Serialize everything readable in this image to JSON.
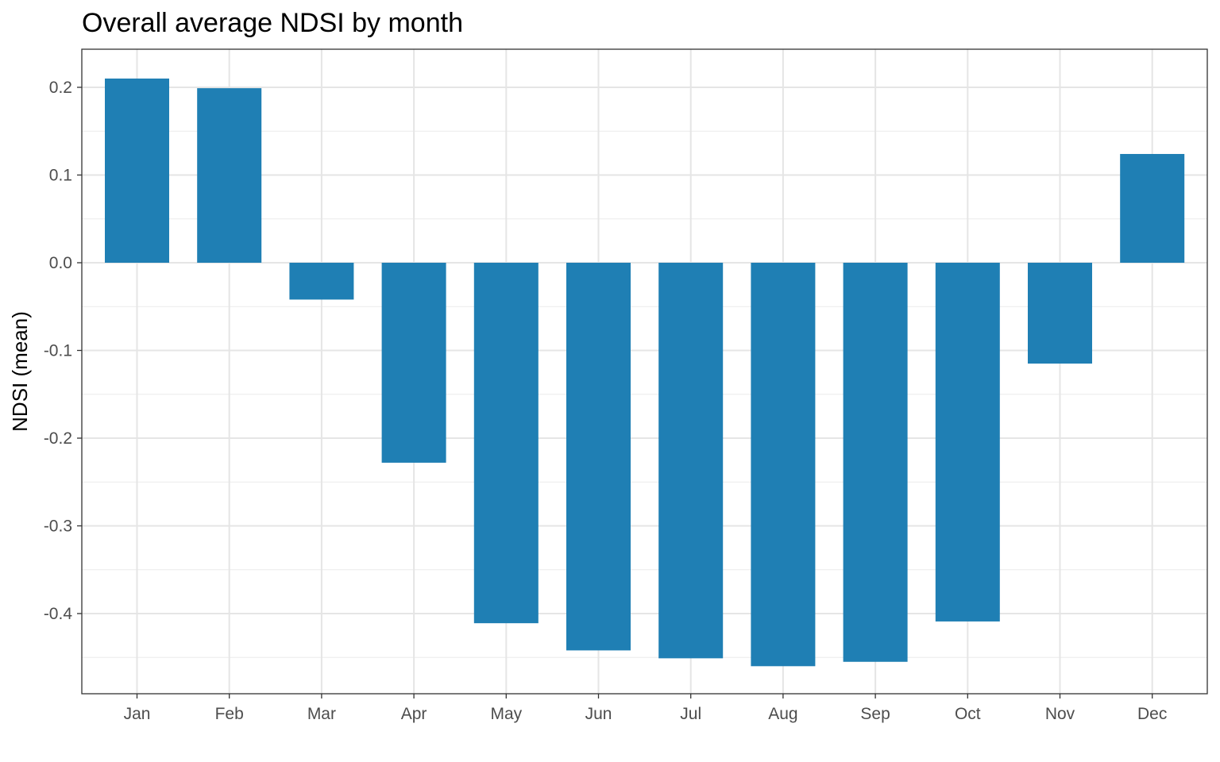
{
  "chart_data": {
    "type": "bar",
    "title": "Overall average NDSI by month",
    "xlabel": "",
    "ylabel": "NDSI (mean)",
    "categories": [
      "Jan",
      "Feb",
      "Mar",
      "Apr",
      "May",
      "Jun",
      "Jul",
      "Aug",
      "Sep",
      "Oct",
      "Nov",
      "Dec"
    ],
    "values": [
      0.21,
      0.199,
      -0.042,
      -0.228,
      -0.411,
      -0.442,
      -0.451,
      -0.46,
      -0.455,
      -0.409,
      -0.115,
      0.124
    ],
    "ylim": [
      -0.49,
      0.24
    ],
    "yticks": [
      0.2,
      0.1,
      0.0,
      -0.1,
      -0.2,
      -0.3,
      -0.4
    ],
    "ytick_labels": [
      "0.2",
      "0.1",
      "0.0",
      "-0.1",
      "-0.2",
      "-0.3",
      "-0.4"
    ],
    "grid": true,
    "bar_color": "#1f7fb4"
  }
}
